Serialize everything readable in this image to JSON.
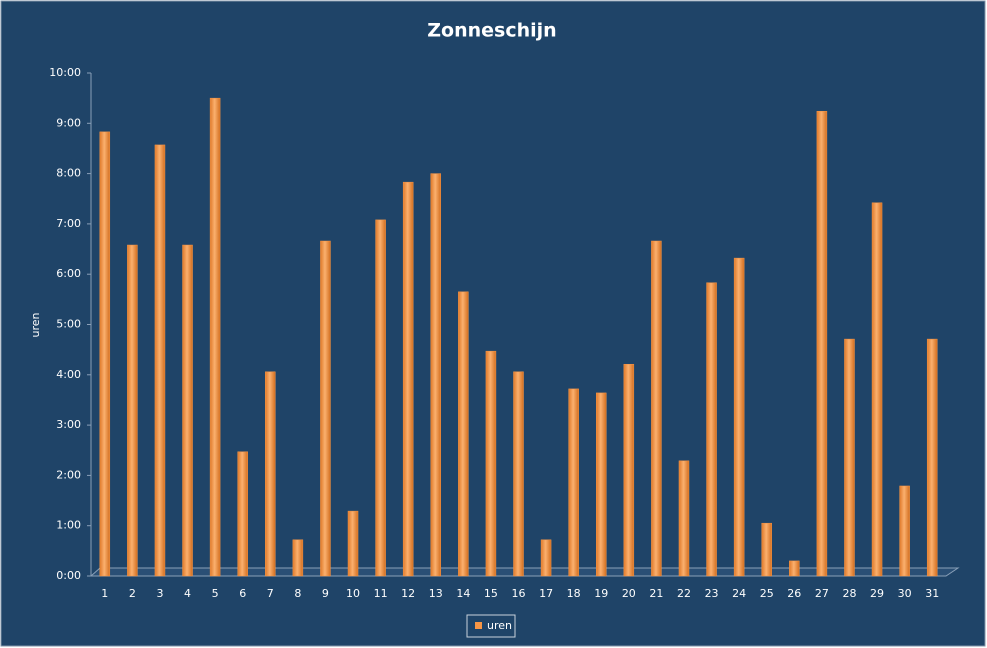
{
  "chart_data": {
    "type": "bar",
    "title": "Zonneschijn",
    "y_label": "uren",
    "categories": [
      "1",
      "2",
      "3",
      "4",
      "5",
      "6",
      "7",
      "8",
      "9",
      "10",
      "11",
      "12",
      "13",
      "14",
      "15",
      "16",
      "17",
      "18",
      "19",
      "20",
      "21",
      "22",
      "23",
      "24",
      "25",
      "26",
      "27",
      "28",
      "29",
      "30",
      "31"
    ],
    "series": [
      {
        "name": "uren",
        "color": "#f79646",
        "values": [
          8.83,
          6.58,
          8.57,
          6.58,
          9.5,
          2.47,
          4.06,
          0.72,
          6.66,
          1.29,
          7.08,
          7.83,
          8.0,
          5.65,
          4.47,
          4.06,
          0.72,
          3.72,
          3.64,
          4.21,
          6.66,
          2.29,
          5.83,
          6.32,
          1.05,
          0.3,
          9.24,
          4.71,
          7.42,
          1.79,
          4.71
        ]
      }
    ],
    "ylim": [
      0,
      10
    ],
    "yticks": [
      {
        "value": 0,
        "label": "0:00"
      },
      {
        "value": 1,
        "label": "1:00"
      },
      {
        "value": 2,
        "label": "2:00"
      },
      {
        "value": 3,
        "label": "3:00"
      },
      {
        "value": 4,
        "label": "4:00"
      },
      {
        "value": 5,
        "label": "5:00"
      },
      {
        "value": 6,
        "label": "6:00"
      },
      {
        "value": 7,
        "label": "7:00"
      },
      {
        "value": 8,
        "label": "8:00"
      },
      {
        "value": 9,
        "label": "9:00"
      },
      {
        "value": 10,
        "label": "10:00"
      }
    ],
    "grid": false,
    "legend": "bottom"
  }
}
